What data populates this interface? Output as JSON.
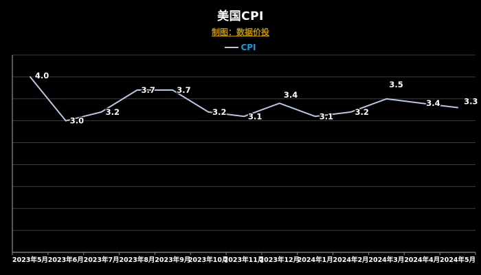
{
  "chart_data": {
    "type": "line",
    "title": "美国CPI",
    "subtitle": "制图：数据价投",
    "legend": [
      {
        "name": "CPI"
      }
    ],
    "legend_position": "top",
    "categories": [
      "2023年5月",
      "2023年6月",
      "2023年7月",
      "2023年8月",
      "2023年9月",
      "2023年10月",
      "2023年11月",
      "2023年12月",
      "2024年1月",
      "2024年2月",
      "2024年3月",
      "2024年4月",
      "2024年5月"
    ],
    "values": [
      4.0,
      3.0,
      3.2,
      3.7,
      3.7,
      3.2,
      3.1,
      3.4,
      3.1,
      3.2,
      3.5,
      3.4,
      3.3
    ],
    "value_decimals": 1,
    "ylim": [
      0,
      4.5
    ],
    "grid_step": 0.5,
    "grid": true,
    "colors": {
      "background": "#000000",
      "title": "#ffffff",
      "subtitle": "#bf9000",
      "legend_label": "#159cd8",
      "line": "#b7c9e2",
      "grid": "#3d3d3d",
      "axis": "#8f8f8f",
      "data_label": "#ffffff",
      "tick_label": "#ffffff"
    },
    "data_label_default_offset": [
      6,
      4
    ],
    "data_label_offsets": {
      "0": [
        7,
        2
      ],
      "7": [
        6,
        -8
      ],
      "10": [
        4,
        -17
      ],
      "12": [
        9,
        -5
      ]
    }
  }
}
